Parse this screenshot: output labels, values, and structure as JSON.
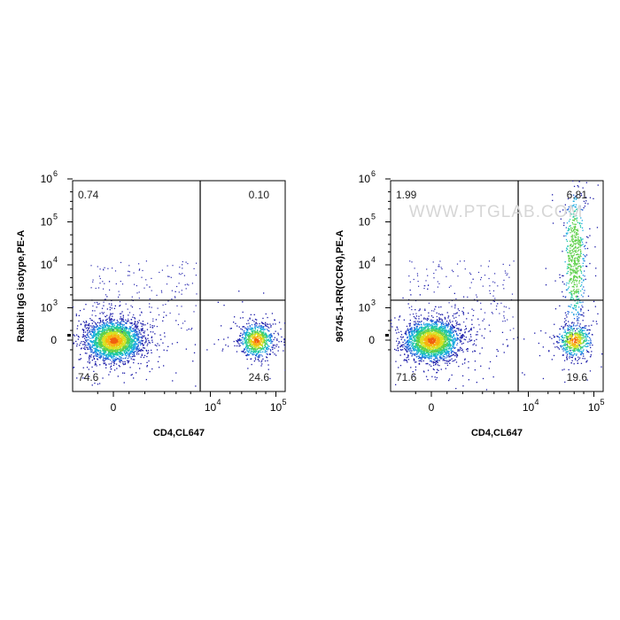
{
  "chart_data": [
    {
      "type": "scatter",
      "plot_kind": "flow-cytometry-density",
      "xlabel": "CD4,CL647",
      "ylabel": "Rabbit IgG isotype,PE-A",
      "x_ticks": [
        {
          "value": 0,
          "base": "0",
          "exp": ""
        },
        {
          "value": 10000,
          "base": "10",
          "exp": "4"
        },
        {
          "value": 100000,
          "base": "10",
          "exp": "5"
        }
      ],
      "y_ticks": [
        {
          "value": 0,
          "base": "0",
          "exp": ""
        },
        {
          "value": 1000,
          "base": "10",
          "exp": "3"
        },
        {
          "value": 10000,
          "base": "10",
          "exp": "4"
        },
        {
          "value": 100000,
          "base": "10",
          "exp": "5"
        },
        {
          "value": 1000000,
          "base": "10",
          "exp": "6"
        }
      ],
      "gate": {
        "x": 7000,
        "y": 1500
      },
      "quadrants": {
        "upper_left": "0.74",
        "upper_right": "0.10",
        "lower_left": "74.6",
        "lower_right": "24.6"
      },
      "populations": [
        {
          "x": 0,
          "y": 0,
          "count": 2600
        },
        {
          "x": 50000,
          "y": 0,
          "count": 850
        }
      ],
      "watermark": ""
    },
    {
      "type": "scatter",
      "plot_kind": "flow-cytometry-density",
      "xlabel": "CD4,CL647",
      "ylabel": "98745-1-RR(CCR4),PE-A",
      "x_ticks": [
        {
          "value": 0,
          "base": "0",
          "exp": ""
        },
        {
          "value": 10000,
          "base": "10",
          "exp": "4"
        },
        {
          "value": 100000,
          "base": "10",
          "exp": "5"
        }
      ],
      "y_ticks": [
        {
          "value": 0,
          "base": "0",
          "exp": ""
        },
        {
          "value": 1000,
          "base": "10",
          "exp": "3"
        },
        {
          "value": 10000,
          "base": "10",
          "exp": "4"
        },
        {
          "value": 100000,
          "base": "10",
          "exp": "5"
        },
        {
          "value": 1000000,
          "base": "10",
          "exp": "6"
        }
      ],
      "gate": {
        "x": 7000,
        "y": 1500
      },
      "quadrants": {
        "upper_left": "1.99",
        "upper_right": "6.81",
        "lower_left": "71.6",
        "lower_right": "19.6"
      },
      "populations": [
        {
          "x": 0,
          "y": 0,
          "count": 2500
        },
        {
          "x": 50000,
          "y": 0,
          "count": 600
        },
        {
          "x": 50000,
          "y": 15000,
          "count": 650
        }
      ],
      "watermark": "WWW.PTGLAB.COM"
    }
  ]
}
